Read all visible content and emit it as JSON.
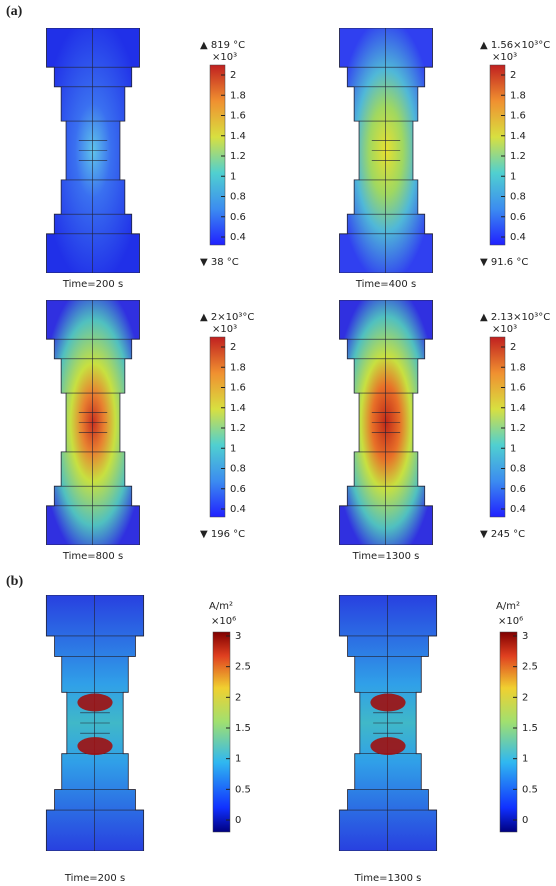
{
  "panel_a": {
    "label": "(a)",
    "panels": [
      {
        "max_label": "▲ 819 °C",
        "scale_label": "×10³",
        "ticks": [
          2,
          1.8,
          1.6,
          1.4,
          1.2,
          1,
          0.8,
          0.6,
          0.4
        ],
        "min_label": "▼ 38 °C",
        "caption": "Time=200 s"
      },
      {
        "max_label": "▲ 1.56×10³°C",
        "scale_label": "×10³",
        "ticks": [
          2,
          1.8,
          1.6,
          1.4,
          1.2,
          1,
          0.8,
          0.6,
          0.4
        ],
        "min_label": "▼ 91.6 °C",
        "caption": "Time=400 s"
      },
      {
        "max_label": "▲ 2×10³°C",
        "scale_label": "×10³",
        "ticks": [
          2,
          1.8,
          1.6,
          1.4,
          1.2,
          1,
          0.8,
          0.6,
          0.4
        ],
        "min_label": "▼ 196 °C",
        "caption": "Time=800 s"
      },
      {
        "max_label": "▲ 2.13×10³°C",
        "scale_label": "×10³",
        "ticks": [
          2,
          1.8,
          1.6,
          1.4,
          1.2,
          1,
          0.8,
          0.6,
          0.4
        ],
        "min_label": "▼ 245 °C",
        "caption": "Time=1300 s"
      }
    ]
  },
  "panel_b": {
    "label": "(b)",
    "panels": [
      {
        "unit": "A/m²",
        "scale_label": "×10⁶",
        "ticks": [
          3,
          2.5,
          2,
          1.5,
          1,
          0.5,
          0
        ],
        "caption": "Time=200 s"
      },
      {
        "unit": "A/m²",
        "scale_label": "×10⁶",
        "ticks": [
          3,
          2.5,
          2,
          1.5,
          1,
          0.5,
          0
        ],
        "caption": "Time=1300 s"
      }
    ]
  }
}
